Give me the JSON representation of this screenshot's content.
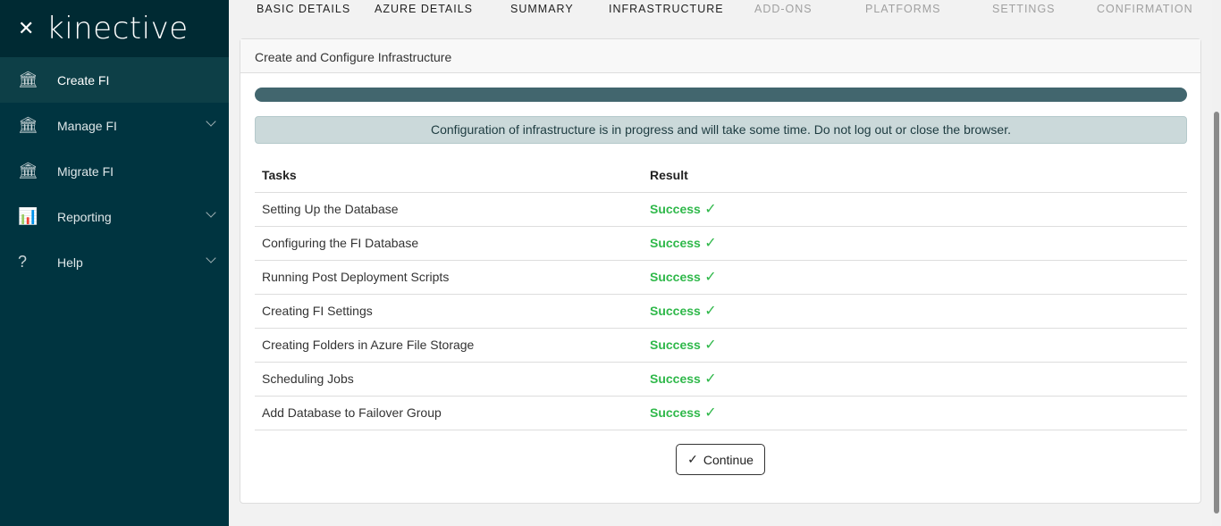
{
  "sidebar": {
    "logo": "kinective",
    "items": [
      {
        "label": "Create FI",
        "icon": "bank-plus-icon",
        "glyph": "🏛",
        "expandable": false,
        "active": true
      },
      {
        "label": "Manage FI",
        "icon": "bank-gear-icon",
        "glyph": "🏛",
        "expandable": true
      },
      {
        "label": "Migrate FI",
        "icon": "bank-arrow-icon",
        "glyph": "🏛",
        "expandable": false
      },
      {
        "label": "Reporting",
        "icon": "bar-chart-icon",
        "glyph": "📊",
        "expandable": true
      },
      {
        "label": "Help",
        "icon": "help-bubble-icon",
        "glyph": "?",
        "expandable": true
      }
    ]
  },
  "steps": [
    "BASIC DETAILS",
    "AZURE DETAILS",
    "SUMMARY",
    "INFRASTRUCTURE",
    "ADD-ONS",
    "PLATFORMS",
    "SETTINGS",
    "CONFIRMATION"
  ],
  "card": {
    "title": "Create and Configure Infrastructure",
    "progress_percent": 100,
    "alert": "Configuration of infrastructure is in progress and will take some time. Do not log out or close the browser.",
    "columns": [
      "Tasks",
      "Result"
    ],
    "rows": [
      {
        "task": "Setting Up the Database",
        "result": "Success"
      },
      {
        "task": "Configuring the FI Database",
        "result": "Success"
      },
      {
        "task": "Running Post Deployment Scripts",
        "result": "Success"
      },
      {
        "task": "Creating FI Settings",
        "result": "Success"
      },
      {
        "task": "Creating Folders in Azure File Storage",
        "result": "Success"
      },
      {
        "task": "Scheduling Jobs",
        "result": "Success"
      },
      {
        "task": "Add Database to Failover Group",
        "result": "Success"
      }
    ],
    "continue_label": "Continue"
  },
  "colors": {
    "sidebar": "#003440",
    "success": "#2fb84a",
    "progress": "#42666e"
  }
}
